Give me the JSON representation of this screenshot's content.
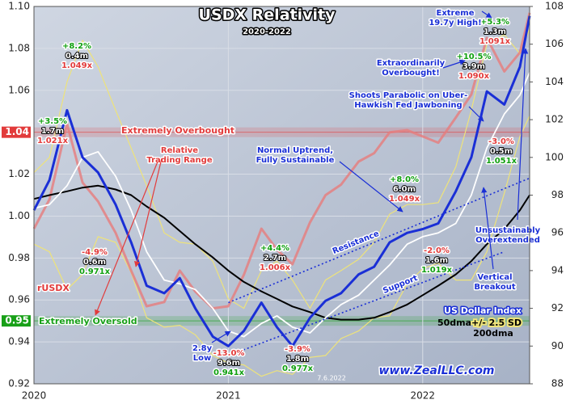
{
  "chart_data": {
    "type": "line",
    "title": "USDX Relativity",
    "subtitle": "2020-2022",
    "x": [
      2020,
      2020.08,
      2020.17,
      2020.25,
      2020.33,
      2020.42,
      2020.5,
      2020.58,
      2020.67,
      2020.75,
      2020.83,
      2020.92,
      2021,
      2021.08,
      2021.17,
      2021.25,
      2021.33,
      2021.42,
      2021.5,
      2021.58,
      2021.67,
      2021.75,
      2021.83,
      2021.92,
      2022,
      2022.08,
      2022.17,
      2022.25,
      2022.33,
      2022.42,
      2022.5,
      2022.55
    ],
    "xlim": [
      2020,
      2022.55
    ],
    "xticks": [
      2020,
      2021,
      2022
    ],
    "ylim": [
      0.92,
      1.1
    ],
    "yticks": [
      0.92,
      0.94,
      0.96,
      0.98,
      {
        "value": 1,
        "label": "1.00"
      },
      1.02,
      1.06,
      1.08,
      {
        "value": 1.1,
        "label": "1.10"
      }
    ],
    "y2lim": [
      88,
      108
    ],
    "y2ticks": [
      88,
      90,
      92,
      94,
      96,
      98,
      100,
      102,
      104,
      106,
      108
    ],
    "grid": true,
    "series": [
      {
        "name": "rUSDX",
        "color": "#e77c7c",
        "axis": "y",
        "values": [
          0.994,
          1.008,
          1.044,
          1.016,
          1.007,
          0.992,
          0.974,
          0.957,
          0.959,
          0.974,
          0.964,
          0.956,
          0.957,
          0.972,
          0.994,
          0.984,
          0.977,
          0.997,
          1.01,
          1.015,
          1.026,
          1.03,
          1.04,
          1.041,
          1.038,
          1.035,
          1.047,
          1.058,
          1.085,
          1.069,
          1.078,
          1.097
        ]
      },
      {
        "name": "200dma",
        "color": "#000000",
        "axis": "y2",
        "values": [
          97.8,
          98.0,
          98.2,
          98.4,
          98.5,
          98.3,
          98.0,
          97.4,
          96.8,
          96.1,
          95.4,
          94.7,
          94.0,
          93.4,
          92.9,
          92.5,
          92.1,
          91.8,
          91.5,
          91.4,
          91.4,
          91.5,
          91.8,
          92.2,
          92.7,
          93.2,
          93.8,
          94.5,
          95.4,
          96.2,
          97.2,
          98.0
        ]
      },
      {
        "name": "50dma",
        "color": "#ffffff",
        "axis": "y2",
        "values": [
          97.3,
          97.5,
          98.5,
          100.0,
          100.3,
          99.0,
          97.2,
          95.0,
          93.5,
          93.3,
          93.0,
          92.0,
          90.8,
          90.5,
          91.2,
          91.6,
          91.0,
          90.7,
          91.5,
          92.2,
          92.7,
          93.5,
          94.3,
          95.4,
          95.8,
          96.0,
          96.5,
          98.0,
          100.5,
          102.3,
          103.3,
          104.5
        ]
      },
      {
        "name": "US Dollar Index",
        "color": "#1a2fd6",
        "axis": "y2",
        "values": [
          97.2,
          98.8,
          102.5,
          100.0,
          99.2,
          97.5,
          95.5,
          93.2,
          92.8,
          93.6,
          92.0,
          90.5,
          90.0,
          90.8,
          92.3,
          91.0,
          90.0,
          91.5,
          92.4,
          92.8,
          93.8,
          94.2,
          95.5,
          96.0,
          96.2,
          96.5,
          98.2,
          100.0,
          103.5,
          102.8,
          104.8,
          107.5
        ]
      }
    ],
    "band": {
      "name": "+/- 2.5 SD",
      "color": "#eee37a",
      "axis": "y2",
      "upper": [
        99.2,
        100.0,
        104.0,
        106.2,
        104.8,
        102.5,
        100.5,
        98.5,
        96.0,
        95.5,
        95.4,
        94.5,
        92.5,
        92.0,
        94.0,
        94.5,
        93.5,
        92.0,
        93.5,
        94.0,
        94.6,
        95.5,
        97.0,
        97.5,
        97.5,
        97.6,
        99.5,
        102.5,
        106.0,
        106.5,
        105.5,
        106.8
      ],
      "lower": [
        95.4,
        95.0,
        93.0,
        93.8,
        95.8,
        95.5,
        93.9,
        91.5,
        91.0,
        91.1,
        90.6,
        89.5,
        89.1,
        89.0,
        88.4,
        88.7,
        88.5,
        89.4,
        89.5,
        90.4,
        90.8,
        91.5,
        91.6,
        93.3,
        94.1,
        94.4,
        93.5,
        93.5,
        95.0,
        98.1,
        101.1,
        102.2
      ]
    },
    "trendlines": [
      {
        "name": "Resistance",
        "color": "#1a2fd6",
        "axis": "y2",
        "x": [
          2021.0,
          2022.55
        ],
        "values": [
          92.3,
          98.9
        ]
      },
      {
        "name": "Support",
        "color": "#1a2fd6",
        "axis": "y2",
        "x": [
          2021.0,
          2022.42
        ],
        "values": [
          89.5,
          95.0
        ]
      }
    ],
    "reference_lines": [
      {
        "value": 1.04,
        "label": "Extremely Overbought",
        "color": "#e23b3b"
      },
      {
        "value": 0.95,
        "label": "Extremely Oversold",
        "color": "#18a018"
      }
    ],
    "callouts": [
      {
        "change": "+3.5%",
        "duration": "1.7m",
        "ratio": "1.021x"
      },
      {
        "change": "+8.2%",
        "duration": "0.4m",
        "ratio": "1.049x"
      },
      {
        "change": "-4.9%",
        "duration": "0.6m",
        "ratio": "0.971x"
      },
      {
        "change": "-13.0%",
        "duration": "9.6m",
        "ratio": "0.941x"
      },
      {
        "change": "+4.4%",
        "duration": "2.7m",
        "ratio": "1.006x"
      },
      {
        "change": "-3.9%",
        "duration": "1.8m",
        "ratio": "0.977x"
      },
      {
        "change": "+8.0%",
        "duration": "6.0m",
        "ratio": "1.049x"
      },
      {
        "change": "-2.0%",
        "duration": "1.6m",
        "ratio": "1.019x"
      },
      {
        "change": "+10.5%",
        "duration": "3.9m",
        "ratio": "1.090x"
      },
      {
        "change": "+5.3%",
        "duration": "1.3m",
        "ratio": "1.091x"
      },
      {
        "change": "-3.0%",
        "duration": "0.5m",
        "ratio": "1.051x"
      }
    ],
    "notes": [
      {
        "lines": [
          "Relative",
          "Trading Range"
        ],
        "color": "#e23b3b"
      },
      {
        "lines": [
          "Normal Uptrend,",
          "Fully Sustainable"
        ],
        "color": "#1a2fd6"
      },
      {
        "lines": [
          "Shoots Parabolic on Uber-",
          "Hawkish Fed Jawboning"
        ],
        "color": "#1a2fd6"
      },
      {
        "lines": [
          "Extraordinarily",
          "Overbought!"
        ],
        "color": "#1a2fd6"
      },
      {
        "lines": [
          "Extreme",
          "19.7y High!"
        ],
        "color": "#1a2fd6"
      },
      {
        "lines": [
          "Unsustainably",
          "Overextended"
        ],
        "color": "#1a2fd6"
      },
      {
        "lines": [
          "Vertical",
          "Breakout"
        ],
        "color": "#1a2fd6"
      },
      {
        "lines": [
          "2.8y",
          "Low"
        ],
        "color": "#1a2fd6"
      },
      {
        "lines": [
          "7.6.2022"
        ],
        "color": "#ffffff"
      },
      {
        "lines": [
          "www.ZealLLC.com"
        ],
        "color": "#1a2fd6"
      }
    ]
  }
}
